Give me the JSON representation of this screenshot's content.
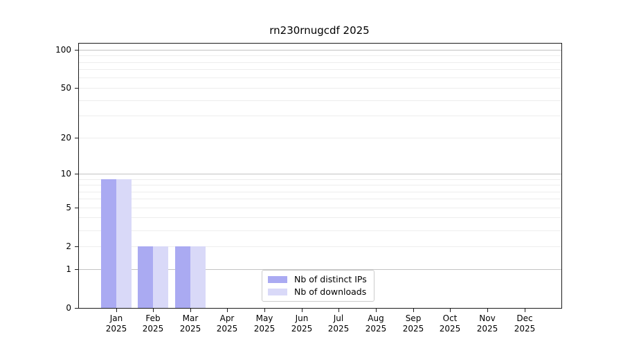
{
  "chart_data": {
    "type": "bar",
    "title": "rn230rnugcdf 2025",
    "categories": [
      {
        "label": "Jan",
        "year": "2025"
      },
      {
        "label": "Feb",
        "year": "2025"
      },
      {
        "label": "Mar",
        "year": "2025"
      },
      {
        "label": "Apr",
        "year": "2025"
      },
      {
        "label": "May",
        "year": "2025"
      },
      {
        "label": "Jun",
        "year": "2025"
      },
      {
        "label": "Jul",
        "year": "2025"
      },
      {
        "label": "Aug",
        "year": "2025"
      },
      {
        "label": "Sep",
        "year": "2025"
      },
      {
        "label": "Oct",
        "year": "2025"
      },
      {
        "label": "Nov",
        "year": "2025"
      },
      {
        "label": "Dec",
        "year": "2025"
      }
    ],
    "series": [
      {
        "name": "Nb of distinct IPs",
        "color": "#aaaaf2",
        "values": [
          9,
          2,
          2,
          0,
          0,
          0,
          0,
          0,
          0,
          0,
          0,
          0
        ]
      },
      {
        "name": "Nb of downloads",
        "color": "#d9d9f8",
        "values": [
          9,
          2,
          2,
          0,
          0,
          0,
          0,
          0,
          0,
          0,
          0,
          0
        ]
      }
    ],
    "xlabel": "",
    "ylabel": "",
    "yscale": "log10(1+x)",
    "ylim": [
      0,
      112
    ],
    "yticks": [
      0,
      1,
      2,
      5,
      10,
      20,
      50,
      100
    ],
    "grid": {
      "major_lines": [
        1,
        10,
        100
      ],
      "minor_lines": [
        2,
        3,
        4,
        5,
        6,
        7,
        8,
        9,
        20,
        30,
        40,
        50,
        60,
        70,
        80,
        90
      ]
    },
    "legend_position": "lower center"
  }
}
